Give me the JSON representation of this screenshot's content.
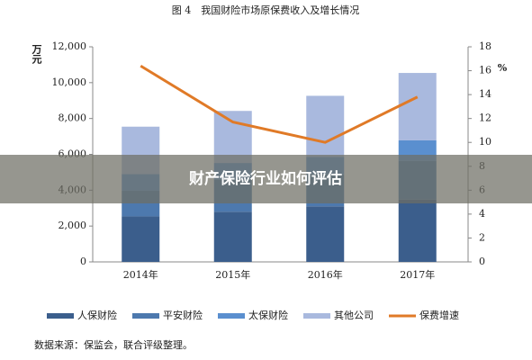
{
  "chart_data": {
    "type": "bar_line",
    "title": "图 4　我国财险市场原保费收入及增长情况",
    "y_label": "万元",
    "y2_label": "%",
    "categories": [
      "2014年",
      "2015年",
      "2016年",
      "2017年"
    ],
    "series": [
      {
        "name": "人保财险",
        "color": "#3b5e8c",
        "values": [
          2540,
          2800,
          3100,
          3480
        ]
      },
      {
        "name": "平安财险",
        "color": "#4d79ae",
        "values": [
          1430,
          1780,
          1780,
          2160
        ]
      },
      {
        "name": "太保财险",
        "color": "#5a8fcf",
        "values": [
          930,
          940,
          970,
          1140
        ]
      },
      {
        "name": "其他公司",
        "color": "#a9b9de",
        "values": [
          2644,
          2903,
          3416,
          3761
        ]
      },
      {
        "name": "保费增速",
        "color": "#e07a27",
        "axis": "y2",
        "type": "line",
        "values": [
          16.4,
          11.7,
          10.0,
          13.8
        ]
      }
    ],
    "ylim": [
      0,
      12000
    ],
    "yticks": [
      0,
      {
        "value": 2000,
        "label": "2,000"
      },
      {
        "value": 4000,
        "label": "4,000"
      },
      {
        "value": 6000,
        "label": "6,000"
      },
      {
        "value": 8000,
        "label": "8,000"
      },
      {
        "value": 10000,
        "label": "10,000"
      },
      {
        "value": 12000,
        "label": "12,000"
      }
    ],
    "y2lim": [
      0,
      18
    ],
    "y2ticks": [
      0,
      2,
      4,
      6,
      8,
      10,
      12,
      14,
      16,
      18
    ],
    "source": "数据来源：保监会，联合评级整理。",
    "banner": "财产保险行业如何评估"
  }
}
